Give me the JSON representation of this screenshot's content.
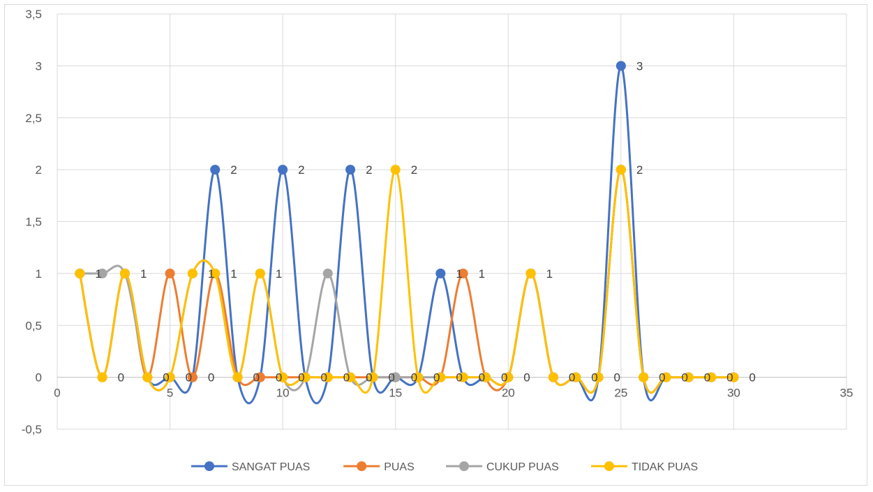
{
  "chart_data": {
    "type": "scatter",
    "subtype": "smooth-lines-with-markers",
    "title": "",
    "xlabel": "",
    "ylabel": "",
    "xlim": [
      0,
      35
    ],
    "ylim": [
      -0.5,
      3.5
    ],
    "x_ticks": [
      0,
      5,
      10,
      15,
      20,
      25,
      30,
      35
    ],
    "y_ticks": [
      -0.5,
      0,
      0.5,
      1,
      1.5,
      2,
      2.5,
      3,
      3.5
    ],
    "x_tick_labels": [
      "0",
      "5",
      "10",
      "15",
      "20",
      "25",
      "30",
      "35"
    ],
    "y_tick_labels": [
      "-0,5",
      "0",
      "0,5",
      "1",
      "1,5",
      "2",
      "2,5",
      "3",
      "3,5"
    ],
    "grid": "vertical and horizontal",
    "legend_position": "bottom",
    "x": [
      1,
      2,
      3,
      4,
      5,
      6,
      7,
      8,
      9,
      10,
      11,
      12,
      13,
      14,
      15,
      16,
      17,
      18,
      19,
      20,
      21,
      22,
      23,
      24,
      25,
      26,
      27,
      28,
      29,
      30
    ],
    "series": [
      {
        "name": "SANGAT PUAS",
        "color": "#4472c4",
        "values": [
          1,
          0,
          1,
          0,
          0,
          0,
          2,
          0,
          0,
          2,
          0,
          0,
          2,
          0,
          0,
          0,
          1,
          0,
          0,
          0,
          1,
          0,
          0,
          0,
          3,
          0,
          0,
          0,
          0,
          0
        ]
      },
      {
        "name": "PUAS",
        "color": "#ed7d31",
        "values": [
          1,
          0,
          1,
          0,
          1,
          0,
          1,
          0,
          0,
          0,
          0,
          0,
          0,
          0,
          0,
          0,
          0,
          1,
          0,
          0,
          1,
          0,
          0,
          0,
          2,
          0,
          0,
          0,
          0,
          0
        ]
      },
      {
        "name": "CUKUP PUAS",
        "color": "#a5a5a5",
        "values": [
          1,
          1,
          1,
          0,
          0,
          1,
          1,
          0,
          1,
          0,
          0,
          1,
          0,
          0,
          0,
          0,
          0,
          0,
          0,
          0,
          1,
          0,
          0,
          0,
          2,
          0,
          0,
          0,
          0,
          0
        ]
      },
      {
        "name": "TIDAK PUAS",
        "color": "#ffc000",
        "values": [
          1,
          0,
          1,
          0,
          0,
          1,
          1,
          0,
          1,
          0,
          0,
          0,
          0,
          0,
          2,
          0,
          0,
          0,
          0,
          0,
          1,
          0,
          0,
          0,
          2,
          0,
          0,
          0,
          0,
          0
        ]
      }
    ],
    "data_labels": [
      {
        "x": 1,
        "text": "1"
      },
      {
        "x": 2,
        "text": "0"
      },
      {
        "x": 3,
        "text": "1"
      },
      {
        "x": 4,
        "text": "0"
      },
      {
        "x": 5,
        "text": "0"
      },
      {
        "x": 6,
        "text": "1"
      },
      {
        "x": 6,
        "text": "0"
      },
      {
        "x": 7,
        "text": "1"
      },
      {
        "x": 7,
        "text": "2"
      },
      {
        "x": 8,
        "text": "0"
      },
      {
        "x": 9,
        "text": "1"
      },
      {
        "x": 9,
        "text": "0"
      },
      {
        "x": 10,
        "text": "2"
      },
      {
        "x": 10,
        "text": "0"
      },
      {
        "x": 11,
        "text": "0"
      },
      {
        "x": 12,
        "text": "0"
      },
      {
        "x": 13,
        "text": "2"
      },
      {
        "x": 13,
        "text": "0"
      },
      {
        "x": 14,
        "text": "0"
      },
      {
        "x": 15,
        "text": "2"
      },
      {
        "x": 15,
        "text": "0"
      },
      {
        "x": 16,
        "text": "0"
      },
      {
        "x": 17,
        "text": "1"
      },
      {
        "x": 17,
        "text": "0"
      },
      {
        "x": 18,
        "text": "1"
      },
      {
        "x": 18,
        "text": "0"
      },
      {
        "x": 19,
        "text": "0"
      },
      {
        "x": 20,
        "text": "0"
      },
      {
        "x": 21,
        "text": "1"
      },
      {
        "x": 22,
        "text": "0"
      },
      {
        "x": 23,
        "text": "0"
      },
      {
        "x": 24,
        "text": "0"
      },
      {
        "x": 25,
        "text": "3"
      },
      {
        "x": 25,
        "text": "2"
      },
      {
        "x": 26,
        "text": "0"
      },
      {
        "x": 27,
        "text": "0"
      },
      {
        "x": 28,
        "text": "0"
      },
      {
        "x": 29,
        "text": "0"
      },
      {
        "x": 30,
        "text": "0"
      }
    ]
  }
}
